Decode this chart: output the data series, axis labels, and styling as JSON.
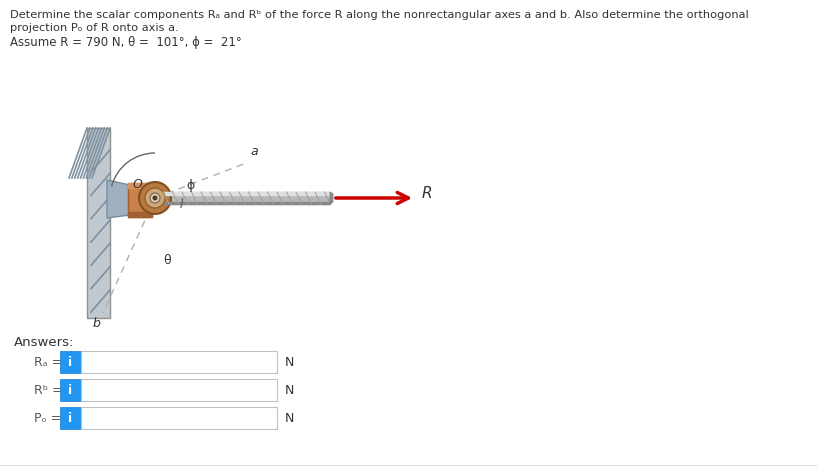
{
  "title_line1": "Determine the scalar components Rₐ and Rᵇ of the force R along the nonrectangular axes a and b. Also determine the orthogonal",
  "title_line2": "projection Pₒ of R onto axis a.",
  "title_line3": "Assume R = 790 N, θ =  101°, ϕ =  21°",
  "answers_label": "Answers:",
  "row1_label": "Rₐ =",
  "row2_label": "Rᵇ =",
  "row3_label": "Pₒ =",
  "unit": "N",
  "box_color": "#2196F3",
  "box_text": "i",
  "bg_color": "#ffffff",
  "text_color": "#333333",
  "label_color": "#555555",
  "arrow_color": "#cc0000"
}
